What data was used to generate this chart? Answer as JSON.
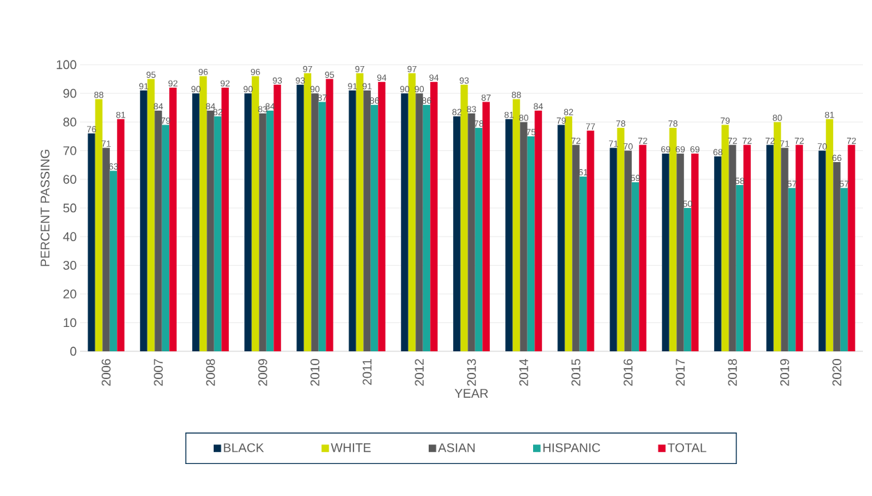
{
  "chart_data": {
    "type": "bar",
    "xlabel": "YEAR",
    "ylabel": "PERCENT PASSING",
    "categories": [
      "2006",
      "2007",
      "2008",
      "2009",
      "2010",
      "2011",
      "2012",
      "2013",
      "2014",
      "2015",
      "2016",
      "2017",
      "2018",
      "2019",
      "2020"
    ],
    "series": [
      {
        "name": "BLACK",
        "color": "#002d4f",
        "values": [
          76,
          91,
          90,
          90,
          93,
          91,
          90,
          82,
          81,
          79,
          71,
          69,
          68,
          72,
          70
        ]
      },
      {
        "name": "WHITE",
        "color": "#d2dc00",
        "values": [
          88,
          95,
          96,
          96,
          97,
          97,
          97,
          93,
          88,
          82,
          78,
          78,
          79,
          80,
          81
        ]
      },
      {
        "name": "ASIAN",
        "color": "#595959",
        "values": [
          71,
          84,
          84,
          83,
          90,
          91,
          90,
          83,
          80,
          72,
          70,
          69,
          72,
          71,
          66
        ]
      },
      {
        "name": "HISPANIC",
        "color": "#1ba79b",
        "values": [
          63,
          79,
          82,
          84,
          87,
          86,
          86,
          78,
          75,
          61,
          59,
          50,
          58,
          57,
          57
        ]
      },
      {
        "name": "TOTAL",
        "color": "#e2002a",
        "values": [
          81,
          92,
          92,
          93,
          95,
          94,
          94,
          87,
          84,
          77,
          72,
          69,
          72,
          72,
          72
        ]
      }
    ],
    "ylim": [
      0,
      100
    ],
    "yticks": [
      0,
      10,
      20,
      30,
      40,
      50,
      60,
      70,
      80,
      90,
      100
    ],
    "grid": "y",
    "legend": "bottom",
    "data_labels": true
  }
}
